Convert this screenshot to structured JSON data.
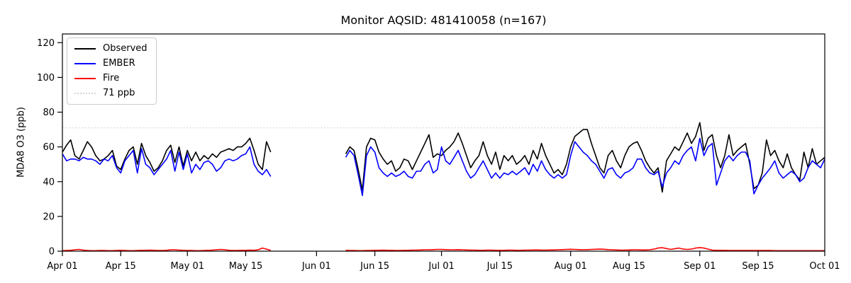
{
  "chart_data": {
    "type": "line",
    "title": "Monitor AQSID: 481410058 (n=167)",
    "ylabel": "MDA8 O3 (ppb)",
    "xlabel": "",
    "ylim": [
      0,
      125
    ],
    "y_ticks": [
      0,
      20,
      40,
      60,
      80,
      100,
      120
    ],
    "grid": false,
    "legend_position": "upper left",
    "x_axis": {
      "total_days": 183,
      "ticks": [
        {
          "day": 0,
          "label": "Apr 01"
        },
        {
          "day": 14,
          "label": "Apr 15"
        },
        {
          "day": 30,
          "label": "May 01"
        },
        {
          "day": 44,
          "label": "May 15"
        },
        {
          "day": 61,
          "label": "Jun 01"
        },
        {
          "day": 75,
          "label": "Jun 15"
        },
        {
          "day": 91,
          "label": "Jul 01"
        },
        {
          "day": 105,
          "label": "Jul 15"
        },
        {
          "day": 122,
          "label": "Aug 01"
        },
        {
          "day": 136,
          "label": "Aug 15"
        },
        {
          "day": 153,
          "label": "Sep 01"
        },
        {
          "day": 167,
          "label": "Sep 15"
        },
        {
          "day": 183,
          "label": "Oct 01"
        }
      ]
    },
    "threshold_line": {
      "label": "71 ppb",
      "value": 71,
      "color": "#d3d3d3",
      "style": "dotted"
    },
    "legend": [
      {
        "label": "Observed",
        "color": "#000000",
        "style": "solid"
      },
      {
        "label": "EMBER",
        "color": "#0000ff",
        "style": "solid"
      },
      {
        "label": "Fire",
        "color": "#ff0000",
        "style": "solid"
      },
      {
        "label": "71 ppb",
        "color": "#d3d3d3",
        "style": "dotted"
      }
    ],
    "series": [
      {
        "name": "Observed",
        "color": "#000000",
        "segments": [
          {
            "start_date": "Apr 01",
            "start_day": 0,
            "values": [
              57,
              61,
              64,
              55,
              53,
              58,
              63,
              60,
              55,
              52,
              53,
              55,
              58,
              49,
              47,
              53,
              58,
              60,
              50,
              62,
              55,
              51,
              46,
              48,
              52,
              58,
              61,
              51,
              60,
              49,
              58,
              52,
              57,
              52,
              55,
              53,
              56,
              54,
              57,
              58,
              59,
              58,
              60,
              60,
              62,
              65,
              58,
              50,
              47,
              63,
              57
            ]
          },
          {
            "start_date": "Jun 08",
            "start_day": 68,
            "values": [
              56,
              60,
              58,
              47,
              35,
              60,
              65,
              64,
              57,
              53,
              50,
              52,
              46,
              48,
              53,
              52,
              47,
              52,
              57,
              62,
              67,
              54,
              56,
              55,
              58,
              60,
              63,
              68,
              62,
              55,
              48,
              52,
              55,
              63,
              55,
              50,
              57,
              47,
              55,
              52,
              55,
              50,
              52,
              55,
              50,
              58,
              53,
              62,
              55,
              50,
              45,
              47,
              44,
              50,
              60,
              66,
              68,
              70,
              70,
              62,
              55,
              48,
              45,
              55,
              58,
              52,
              48,
              55,
              60,
              62,
              63,
              58,
              52,
              48,
              45,
              48,
              34,
              52,
              56,
              60,
              58,
              63,
              68,
              62,
              66,
              74,
              58,
              65,
              67,
              55,
              48,
              55,
              67,
              55,
              58,
              60,
              62,
              50,
              36,
              38,
              45,
              64,
              55,
              58,
              52,
              48,
              56,
              48,
              44,
              41,
              57,
              48,
              59,
              50,
              52,
              54
            ]
          }
        ]
      },
      {
        "name": "EMBER",
        "color": "#0000ff",
        "segments": [
          {
            "start_date": "Apr 01",
            "start_day": 0,
            "values": [
              56,
              52,
              53,
              53,
              52,
              54,
              53,
              53,
              52,
              50,
              53,
              52,
              55,
              48,
              45,
              52,
              55,
              58,
              45,
              59,
              50,
              48,
              44,
              47,
              50,
              53,
              58,
              46,
              57,
              47,
              56,
              45,
              50,
              47,
              51,
              52,
              50,
              46,
              48,
              52,
              53,
              52,
              53,
              55,
              56,
              60,
              50,
              46,
              44,
              47,
              43
            ]
          },
          {
            "start_date": "Jun 08",
            "start_day": 68,
            "values": [
              54,
              58,
              55,
              44,
              32,
              55,
              60,
              57,
              48,
              45,
              43,
              45,
              43,
              44,
              46,
              43,
              42,
              46,
              46,
              50,
              52,
              45,
              47,
              60,
              52,
              50,
              54,
              58,
              52,
              46,
              42,
              44,
              48,
              52,
              47,
              42,
              45,
              42,
              45,
              44,
              46,
              44,
              46,
              48,
              44,
              50,
              46,
              52,
              47,
              44,
              42,
              44,
              42,
              44,
              55,
              63,
              60,
              57,
              55,
              52,
              50,
              46,
              42,
              47,
              48,
              44,
              42,
              45,
              46,
              48,
              53,
              53,
              48,
              45,
              44,
              46,
              37,
              45,
              48,
              52,
              50,
              55,
              58,
              60,
              52,
              65,
              55,
              60,
              62,
              38,
              45,
              52,
              55,
              52,
              55,
              57,
              57,
              52,
              33,
              38,
              42,
              45,
              48,
              52,
              45,
              42,
              44,
              46,
              44,
              40,
              42,
              48,
              52,
              50,
              48,
              53
            ]
          }
        ]
      },
      {
        "name": "Fire",
        "color": "#ff0000",
        "segments": [
          {
            "start_date": "Apr 01",
            "start_day": 0,
            "values": [
              0.3,
              0.4,
              0.5,
              0.8,
              1.0,
              0.6,
              0.4,
              0.3,
              0.3,
              0.4,
              0.4,
              0.3,
              0.3,
              0.4,
              0.5,
              0.4,
              0.3,
              0.3,
              0.4,
              0.5,
              0.5,
              0.6,
              0.5,
              0.4,
              0.4,
              0.5,
              0.8,
              0.8,
              0.6,
              0.5,
              0.4,
              0.4,
              0.3,
              0.3,
              0.4,
              0.5,
              0.6,
              0.8,
              1.0,
              0.8,
              0.5,
              0.4,
              0.4,
              0.5,
              0.5,
              0.6,
              0.5,
              0.8,
              1.8,
              1.2,
              0.5
            ]
          },
          {
            "start_date": "Jun 08",
            "start_day": 68,
            "values": [
              0.5,
              0.4,
              0.4,
              0.3,
              0.3,
              0.4,
              0.4,
              0.5,
              0.5,
              0.6,
              0.5,
              0.5,
              0.4,
              0.4,
              0.5,
              0.5,
              0.6,
              0.6,
              0.7,
              0.8,
              0.8,
              0.9,
              1.0,
              1.0,
              0.9,
              0.8,
              0.8,
              0.9,
              0.8,
              0.7,
              0.6,
              0.6,
              0.5,
              0.5,
              0.6,
              0.6,
              0.5,
              0.5,
              0.5,
              0.6,
              0.6,
              0.5,
              0.5,
              0.6,
              0.6,
              0.7,
              0.7,
              0.6,
              0.6,
              0.7,
              0.7,
              0.8,
              0.9,
              1.0,
              1.1,
              1.0,
              0.9,
              0.8,
              0.9,
              1.0,
              1.1,
              1.2,
              1.1,
              0.9,
              0.8,
              0.7,
              0.6,
              0.6,
              0.7,
              0.8,
              0.8,
              0.7,
              0.7,
              0.8,
              1.2,
              1.8,
              2.0,
              1.5,
              1.0,
              1.4,
              1.8,
              1.2,
              1.0,
              1.2,
              1.8,
              2.0,
              1.8,
              1.2,
              0.6,
              0.5,
              0.5,
              0.5,
              0.4,
              0.4,
              0.4,
              0.4,
              0.4,
              0.4,
              0.4,
              0.4,
              0.4,
              0.4,
              0.4,
              0.3,
              0.3,
              0.3,
              0.3,
              0.3,
              0.3,
              0.3,
              0.3,
              0.3,
              0.3,
              0.3,
              0.3,
              0.3
            ]
          }
        ]
      }
    ]
  }
}
